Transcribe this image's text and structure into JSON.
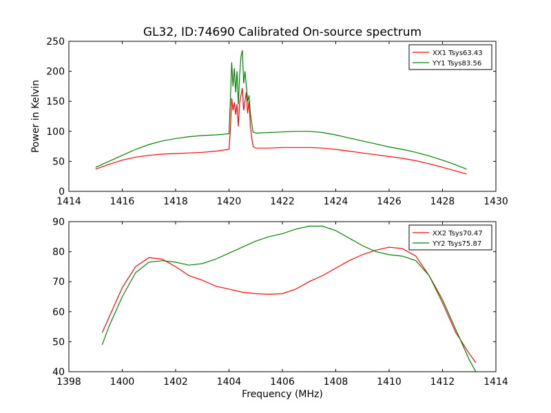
{
  "chart_data": [
    {
      "type": "line",
      "title": "GL32, ID:74690 Calibrated On-source spectrum",
      "xlabel": "",
      "ylabel": "Power in Kelvin",
      "xlim": [
        1414,
        1430
      ],
      "ylim": [
        0,
        250
      ],
      "xticks": [
        1414,
        1416,
        1418,
        1420,
        1422,
        1424,
        1426,
        1428,
        1430
      ],
      "yticks": [
        0,
        50,
        100,
        150,
        200,
        250
      ],
      "grid": false,
      "legend_position": "top-right",
      "series": [
        {
          "name": "XX1 Tsys63.43",
          "color": "#ff0000",
          "x": [
            1415.0,
            1415.5,
            1416.0,
            1416.5,
            1417.0,
            1417.5,
            1418.0,
            1418.5,
            1419.0,
            1419.5,
            1420.0,
            1420.05,
            1420.1,
            1420.15,
            1420.2,
            1420.25,
            1420.3,
            1420.35,
            1420.4,
            1420.45,
            1420.5,
            1420.55,
            1420.6,
            1420.65,
            1420.7,
            1420.75,
            1420.8,
            1420.85,
            1420.9,
            1421.0,
            1421.5,
            1422.0,
            1422.5,
            1423.0,
            1423.5,
            1424.0,
            1424.5,
            1425.0,
            1425.5,
            1426.0,
            1426.5,
            1427.0,
            1427.5,
            1428.0,
            1428.5,
            1428.9
          ],
          "y": [
            37,
            45,
            52,
            57,
            60,
            62,
            63,
            64,
            65,
            67,
            70,
            100,
            155,
            135,
            148,
            128,
            145,
            108,
            148,
            160,
            172,
            135,
            150,
            165,
            130,
            150,
            110,
            90,
            75,
            72,
            72,
            73,
            73,
            73,
            72,
            70,
            67,
            64,
            61,
            58,
            55,
            51,
            46,
            40,
            34,
            29
          ]
        },
        {
          "name": "YY1 Tsys83.56",
          "color": "#008000",
          "x": [
            1415.0,
            1415.5,
            1416.0,
            1416.5,
            1417.0,
            1417.5,
            1418.0,
            1418.5,
            1419.0,
            1419.5,
            1420.0,
            1420.05,
            1420.1,
            1420.15,
            1420.2,
            1420.25,
            1420.3,
            1420.35,
            1420.4,
            1420.45,
            1420.5,
            1420.55,
            1420.6,
            1420.65,
            1420.7,
            1420.75,
            1420.8,
            1420.85,
            1420.9,
            1421.0,
            1421.5,
            1422.0,
            1422.5,
            1423.0,
            1423.5,
            1424.0,
            1424.5,
            1425.0,
            1425.5,
            1426.0,
            1426.5,
            1427.0,
            1427.5,
            1428.0,
            1428.5,
            1428.9
          ],
          "y": [
            40,
            50,
            60,
            70,
            78,
            84,
            88,
            91,
            93,
            94,
            96,
            150,
            215,
            175,
            205,
            165,
            200,
            145,
            195,
            225,
            235,
            180,
            200,
            175,
            150,
            160,
            130,
            115,
            99,
            97,
            98,
            99,
            100,
            100,
            98,
            94,
            89,
            84,
            79,
            74,
            70,
            65,
            59,
            52,
            44,
            37
          ]
        }
      ]
    },
    {
      "type": "line",
      "title": "",
      "xlabel": "Frequency (MHz)",
      "ylabel": "",
      "xlim": [
        1398,
        1414
      ],
      "ylim": [
        40,
        90
      ],
      "xticks": [
        1398,
        1400,
        1402,
        1404,
        1406,
        1408,
        1410,
        1412,
        1414
      ],
      "yticks": [
        40,
        50,
        60,
        70,
        80,
        90
      ],
      "grid": false,
      "legend_position": "top-right",
      "series": [
        {
          "name": "XX2 Tsys70.47",
          "color": "#ff0000",
          "x": [
            1399.25,
            1399.5,
            1400.0,
            1400.5,
            1401.0,
            1401.5,
            1402.0,
            1402.5,
            1403.0,
            1403.5,
            1404.0,
            1404.5,
            1405.0,
            1405.5,
            1406.0,
            1406.5,
            1407.0,
            1407.5,
            1408.0,
            1408.5,
            1409.0,
            1409.5,
            1410.0,
            1410.5,
            1411.0,
            1411.5,
            1412.0,
            1412.5,
            1413.0,
            1413.25
          ],
          "y": [
            53,
            58,
            68,
            75,
            78,
            77.5,
            75,
            72,
            70.5,
            68.5,
            67.5,
            66.5,
            66,
            65.8,
            66,
            67.5,
            70,
            72,
            74.5,
            77,
            79,
            80.5,
            81.5,
            81,
            78.5,
            72,
            63,
            53,
            46,
            43
          ]
        },
        {
          "name": "YY2 Tsys75.87",
          "color": "#008000",
          "x": [
            1399.25,
            1399.5,
            1400.0,
            1400.5,
            1401.0,
            1401.5,
            1402.0,
            1402.5,
            1403.0,
            1403.5,
            1404.0,
            1404.5,
            1405.0,
            1405.5,
            1406.0,
            1406.5,
            1407.0,
            1407.5,
            1408.0,
            1408.5,
            1409.0,
            1409.5,
            1410.0,
            1410.5,
            1411.0,
            1411.5,
            1412.0,
            1412.5,
            1413.0,
            1413.25
          ],
          "y": [
            49,
            55,
            65,
            73,
            76.5,
            77,
            76.5,
            75.5,
            76,
            77.5,
            79.5,
            81.5,
            83.5,
            85,
            86,
            87.5,
            88.5,
            88.5,
            87,
            84.5,
            82,
            80,
            79,
            78.5,
            77,
            72,
            64,
            54,
            44,
            40
          ]
        }
      ]
    }
  ]
}
